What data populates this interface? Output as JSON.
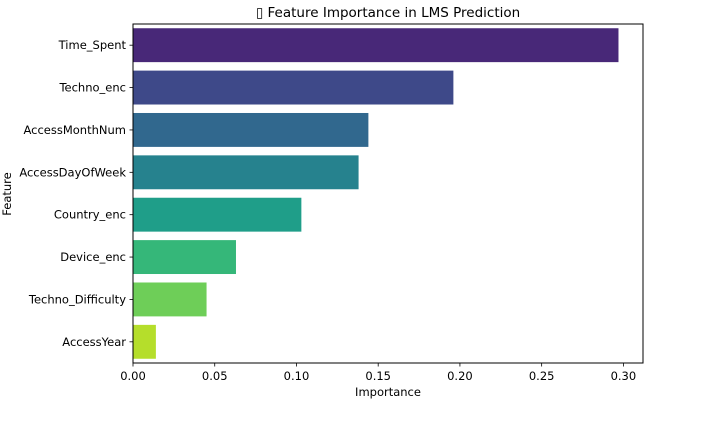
{
  "chart_data": {
    "type": "bar",
    "orientation": "horizontal",
    "title": "▯ Feature Importance in LMS Prediction",
    "xlabel": "Importance",
    "ylabel": "Feature",
    "categories": [
      "Time_Spent",
      "Techno_enc",
      "AccessMonthNum",
      "AccessDayOfWeek",
      "Country_enc",
      "Device_enc",
      "Techno_Difficulty",
      "AccessYear"
    ],
    "values": [
      0.297,
      0.196,
      0.144,
      0.138,
      0.103,
      0.063,
      0.045,
      0.014
    ],
    "colors": [
      "#482878",
      "#3e4989",
      "#31688e",
      "#26828e",
      "#1f9e89",
      "#35b779",
      "#6ece58",
      "#b5de2b"
    ],
    "xlim": [
      0,
      0.312
    ],
    "xticks": [
      0.0,
      0.05,
      0.1,
      0.15,
      0.2,
      0.25,
      0.3
    ],
    "xtick_labels": [
      "0.00",
      "0.05",
      "0.10",
      "0.15",
      "0.20",
      "0.25",
      "0.30"
    ],
    "grid": false,
    "legend": "none"
  }
}
